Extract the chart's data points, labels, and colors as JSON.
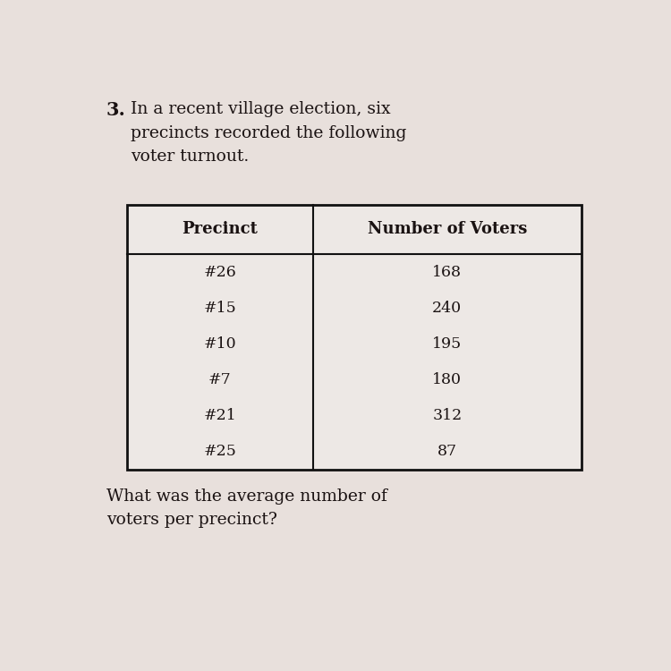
{
  "problem_number": "3.",
  "intro_text": "In a recent village election, six\nprecincts recorded the following\nvoter turnout.",
  "col_headers": [
    "Precinct",
    "Number of Voters"
  ],
  "precincts": [
    "#26",
    "#15",
    "#10",
    "#7",
    "#21",
    "#25"
  ],
  "voters": [
    "168",
    "240",
    "195",
    "180",
    "312",
    "87"
  ],
  "question_text": "What was the average number of\nvoters per precinct?",
  "bg_color": "#e8e0dc",
  "table_bg": "#ede8e5",
  "text_color": "#1a1212",
  "font_size_intro": 13.5,
  "font_size_header": 13,
  "font_size_data": 12.5,
  "font_size_question": 13.5,
  "font_size_number": 15
}
